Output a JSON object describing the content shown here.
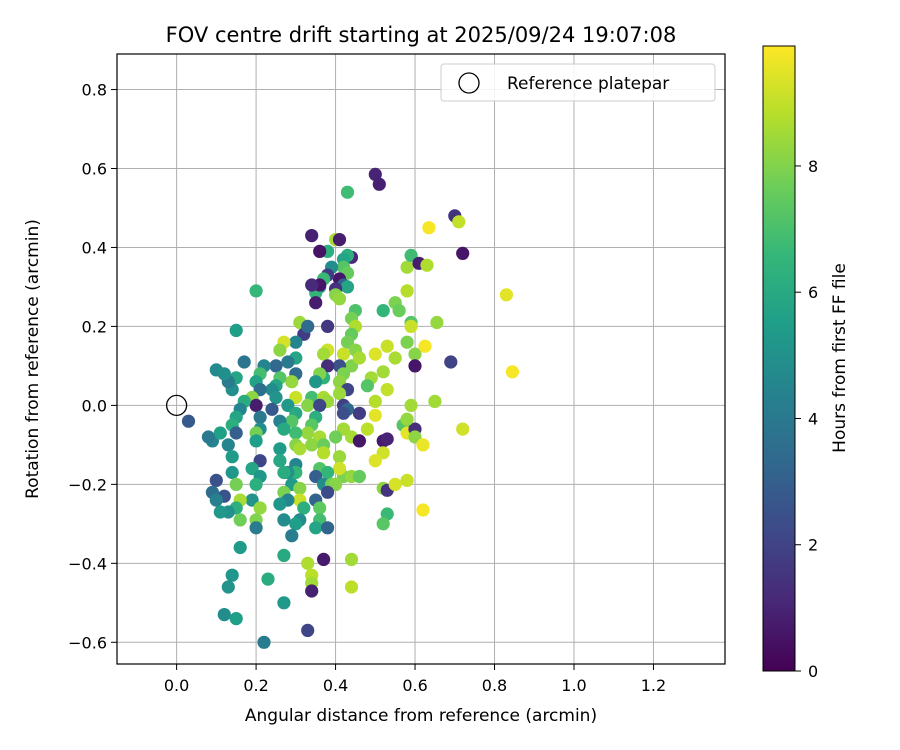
{
  "chart_data": {
    "type": "scatter",
    "title": "FOV centre drift starting at 2025/09/24 19:07:08",
    "xlabel": "Angular distance from reference (arcmin)",
    "ylabel": "Rotation from reference (arcmin)",
    "xlim": [
      -0.15,
      1.38
    ],
    "ylim": [
      -0.655,
      0.89
    ],
    "xticks": [
      0.0,
      0.2,
      0.4,
      0.6,
      0.8,
      1.0,
      1.2
    ],
    "xtick_labels": [
      "0.0",
      "0.2",
      "0.4",
      "0.6",
      "0.8",
      "1.0",
      "1.2"
    ],
    "yticks": [
      -0.6,
      -0.4,
      -0.2,
      0.0,
      0.2,
      0.4,
      0.6,
      0.8
    ],
    "ytick_labels": [
      "−0.6",
      "−0.4",
      "−0.2",
      "0.0",
      "0.2",
      "0.4",
      "0.6",
      "0.8"
    ],
    "grid": true,
    "legend": {
      "position": "top-right",
      "entries": [
        "Reference platepar"
      ]
    },
    "reference": {
      "x": 0.0,
      "y": 0.0,
      "label": "Reference platepar"
    },
    "colorbar": {
      "label": "Hours from first FF file",
      "range": [
        0,
        9.9
      ],
      "ticks": [
        0,
        2,
        4,
        6,
        8
      ],
      "tick_labels": [
        "0",
        "2",
        "4",
        "6",
        "8"
      ],
      "colormap": "viridis",
      "stops": [
        "#440154",
        "#482878",
        "#3e4989",
        "#31688e",
        "#26828e",
        "#1f9e89",
        "#35b779",
        "#6ece58",
        "#b5de2b",
        "#fde725"
      ]
    },
    "points": [
      [
        0.5,
        0.585,
        1.0
      ],
      [
        0.51,
        0.56,
        0.9
      ],
      [
        0.7,
        0.48,
        1.5
      ],
      [
        0.71,
        0.465,
        9.0
      ],
      [
        0.72,
        0.385,
        0.6
      ],
      [
        0.635,
        0.45,
        9.8
      ],
      [
        0.58,
        0.35,
        8.5
      ],
      [
        0.59,
        0.38,
        6.8
      ],
      [
        0.61,
        0.36,
        0.8
      ],
      [
        0.63,
        0.355,
        8.7
      ],
      [
        0.58,
        0.29,
        8.8
      ],
      [
        0.55,
        0.26,
        7.9
      ],
      [
        0.52,
        0.24,
        6.5
      ],
      [
        0.56,
        0.24,
        7.6
      ],
      [
        0.59,
        0.21,
        7.2
      ],
      [
        0.59,
        0.2,
        9.1
      ],
      [
        0.58,
        0.16,
        7.9
      ],
      [
        0.6,
        0.13,
        8.1
      ],
      [
        0.6,
        0.1,
        0.6
      ],
      [
        0.625,
        0.15,
        9.8
      ],
      [
        0.655,
        0.21,
        8.3
      ],
      [
        0.69,
        0.11,
        2.0
      ],
      [
        0.65,
        0.01,
        8.5
      ],
      [
        0.72,
        -0.06,
        9.2
      ],
      [
        0.83,
        0.28,
        9.5
      ],
      [
        0.845,
        0.085,
        9.8
      ],
      [
        0.5,
        0.13,
        9.4
      ],
      [
        0.53,
        0.15,
        9.1
      ],
      [
        0.55,
        0.12,
        8.6
      ],
      [
        0.52,
        0.085,
        8.5
      ],
      [
        0.53,
        0.04,
        9.0
      ],
      [
        0.5,
        0.01,
        8.8
      ],
      [
        0.5,
        -0.025,
        9.5
      ],
      [
        0.49,
        0.07,
        8.5
      ],
      [
        0.48,
        0.05,
        7.2
      ],
      [
        0.46,
        -0.02,
        1.8
      ],
      [
        0.48,
        -0.06,
        8.9
      ],
      [
        0.44,
        -0.08,
        8.6
      ],
      [
        0.46,
        -0.09,
        0.6
      ],
      [
        0.52,
        -0.09,
        0.7
      ],
      [
        0.53,
        -0.085,
        1.0
      ],
      [
        0.52,
        -0.12,
        9.2
      ],
      [
        0.5,
        -0.14,
        9.4
      ],
      [
        0.52,
        -0.21,
        8.2
      ],
      [
        0.53,
        -0.215,
        1.5
      ],
      [
        0.55,
        -0.2,
        9.3
      ],
      [
        0.58,
        -0.19,
        9.1
      ],
      [
        0.57,
        -0.05,
        7.2
      ],
      [
        0.58,
        -0.07,
        9.5
      ],
      [
        0.6,
        -0.06,
        1.3
      ],
      [
        0.59,
        0.0,
        8.5
      ],
      [
        0.58,
        -0.035,
        8.3
      ],
      [
        0.6,
        -0.08,
        8.2
      ],
      [
        0.62,
        -0.1,
        9.6
      ],
      [
        0.62,
        -0.265,
        9.8
      ],
      [
        0.53,
        -0.275,
        6.7
      ],
      [
        0.52,
        -0.3,
        7.3
      ],
      [
        0.44,
        -0.39,
        8.5
      ],
      [
        0.44,
        -0.46,
        8.9
      ],
      [
        0.4,
        0.42,
        8.6
      ],
      [
        0.41,
        0.42,
        0.8
      ],
      [
        0.44,
        0.375,
        1.1
      ],
      [
        0.43,
        0.38,
        6.2
      ],
      [
        0.42,
        0.37,
        5.8
      ],
      [
        0.42,
        0.35,
        7.2
      ],
      [
        0.43,
        0.335,
        7.5
      ],
      [
        0.41,
        0.32,
        0.6
      ],
      [
        0.42,
        0.305,
        3.0
      ],
      [
        0.43,
        0.3,
        5.8
      ],
      [
        0.4,
        0.295,
        1.4
      ],
      [
        0.4,
        0.28,
        8.1
      ],
      [
        0.41,
        0.27,
        8.3
      ],
      [
        0.43,
        0.54,
        6.8
      ],
      [
        0.38,
        0.39,
        6.2
      ],
      [
        0.39,
        0.35,
        4.8
      ],
      [
        0.38,
        0.33,
        1.8
      ],
      [
        0.37,
        0.32,
        6.7
      ],
      [
        0.36,
        0.3,
        5.2
      ],
      [
        0.35,
        0.285,
        6.5
      ],
      [
        0.35,
        0.26,
        0.8
      ],
      [
        0.36,
        0.305,
        0.6
      ],
      [
        0.34,
        0.43,
        0.9
      ],
      [
        0.34,
        0.305,
        1.2
      ],
      [
        0.36,
        0.39,
        0.5
      ],
      [
        0.45,
        0.24,
        7.1
      ],
      [
        0.44,
        0.22,
        7.8
      ],
      [
        0.45,
        0.2,
        8.7
      ],
      [
        0.44,
        0.18,
        7.5
      ],
      [
        0.43,
        0.16,
        7.8
      ],
      [
        0.45,
        0.14,
        8.1
      ],
      [
        0.44,
        0.1,
        8.0
      ],
      [
        0.46,
        0.12,
        8.6
      ],
      [
        0.42,
        0.13,
        9.1
      ],
      [
        0.41,
        0.1,
        2.5
      ],
      [
        0.42,
        0.08,
        7.9
      ],
      [
        0.41,
        0.06,
        8.2
      ],
      [
        0.43,
        0.04,
        2.1
      ],
      [
        0.41,
        0.03,
        8.4
      ],
      [
        0.42,
        0.0,
        1.9
      ],
      [
        0.43,
        -0.01,
        3.3
      ],
      [
        0.42,
        -0.02,
        2.4
      ],
      [
        0.42,
        -0.06,
        8.5
      ],
      [
        0.4,
        -0.08,
        7.7
      ],
      [
        0.41,
        -0.13,
        8.4
      ],
      [
        0.42,
        -0.18,
        7.9
      ],
      [
        0.44,
        -0.18,
        8.3
      ],
      [
        0.46,
        -0.18,
        7.5
      ],
      [
        0.41,
        -0.16,
        9.2
      ],
      [
        0.4,
        -0.2,
        9.0
      ],
      [
        0.38,
        0.2,
        1.6
      ],
      [
        0.38,
        0.14,
        9.2
      ],
      [
        0.37,
        0.13,
        8.5
      ],
      [
        0.38,
        0.1,
        1.3
      ],
      [
        0.37,
        0.07,
        6.4
      ],
      [
        0.36,
        0.08,
        8.0
      ],
      [
        0.35,
        0.06,
        5.2
      ],
      [
        0.34,
        0.02,
        6.9
      ],
      [
        0.33,
        0.0,
        8.1
      ],
      [
        0.37,
        0.02,
        8.6
      ],
      [
        0.38,
        0.01,
        8.4
      ],
      [
        0.36,
        0.0,
        2.1
      ],
      [
        0.35,
        -0.03,
        6.2
      ],
      [
        0.34,
        -0.05,
        7.3
      ],
      [
        0.33,
        -0.07,
        8.3
      ],
      [
        0.36,
        -0.08,
        8.6
      ],
      [
        0.34,
        -0.1,
        8.2
      ],
      [
        0.37,
        -0.1,
        7.6
      ],
      [
        0.37,
        -0.12,
        8.8
      ],
      [
        0.36,
        -0.16,
        7.2
      ],
      [
        0.38,
        -0.17,
        6.5
      ],
      [
        0.35,
        -0.18,
        3.0
      ],
      [
        0.37,
        -0.2,
        4.8
      ],
      [
        0.39,
        -0.2,
        7.8
      ],
      [
        0.4,
        -0.2,
        8.1
      ],
      [
        0.38,
        -0.22,
        2.3
      ],
      [
        0.35,
        -0.24,
        3.1
      ],
      [
        0.36,
        -0.26,
        7.4
      ],
      [
        0.36,
        -0.29,
        6.9
      ],
      [
        0.35,
        -0.31,
        5.8
      ],
      [
        0.38,
        -0.31,
        3.2
      ],
      [
        0.37,
        -0.39,
        0.7
      ],
      [
        0.33,
        -0.4,
        8.7
      ],
      [
        0.34,
        -0.43,
        8.9
      ],
      [
        0.34,
        -0.45,
        8.5
      ],
      [
        0.34,
        -0.47,
        0.9
      ],
      [
        0.33,
        -0.57,
        2.1
      ],
      [
        0.31,
        0.21,
        8.4
      ],
      [
        0.32,
        0.18,
        1.8
      ],
      [
        0.33,
        0.2,
        3.4
      ],
      [
        0.3,
        0.16,
        4.5
      ],
      [
        0.3,
        0.12,
        5.8
      ],
      [
        0.28,
        0.11,
        4.0
      ],
      [
        0.3,
        0.08,
        3.5
      ],
      [
        0.29,
        0.06,
        8.3
      ],
      [
        0.3,
        0.02,
        9.1
      ],
      [
        0.28,
        0.0,
        5.3
      ],
      [
        0.3,
        -0.02,
        6.0
      ],
      [
        0.29,
        -0.04,
        7.2
      ],
      [
        0.3,
        -0.07,
        6.8
      ],
      [
        0.3,
        -0.1,
        8.1
      ],
      [
        0.31,
        -0.11,
        8.6
      ],
      [
        0.3,
        -0.15,
        4.5
      ],
      [
        0.3,
        -0.17,
        6.5
      ],
      [
        0.28,
        -0.17,
        5.0
      ],
      [
        0.29,
        -0.2,
        5.4
      ],
      [
        0.31,
        -0.21,
        8.1
      ],
      [
        0.31,
        -0.24,
        9.1
      ],
      [
        0.32,
        -0.26,
        6.2
      ],
      [
        0.31,
        -0.29,
        4.8
      ],
      [
        0.3,
        -0.3,
        5.5
      ],
      [
        0.29,
        -0.33,
        4.2
      ],
      [
        0.27,
        0.16,
        9.3
      ],
      [
        0.26,
        0.14,
        8.2
      ],
      [
        0.25,
        0.1,
        3.3
      ],
      [
        0.26,
        0.07,
        7.2
      ],
      [
        0.25,
        0.05,
        5.8
      ],
      [
        0.24,
        0.04,
        4.8
      ],
      [
        0.25,
        0.02,
        5.1
      ],
      [
        0.24,
        -0.01,
        2.8
      ],
      [
        0.26,
        -0.04,
        4.4
      ],
      [
        0.27,
        -0.06,
        6.0
      ],
      [
        0.26,
        -0.11,
        5.4
      ],
      [
        0.26,
        -0.14,
        5.9
      ],
      [
        0.27,
        -0.17,
        6.1
      ],
      [
        0.27,
        -0.22,
        7.9
      ],
      [
        0.28,
        -0.24,
        4.5
      ],
      [
        0.26,
        -0.25,
        5.2
      ],
      [
        0.27,
        -0.29,
        4.8
      ],
      [
        0.27,
        -0.38,
        6.0
      ],
      [
        0.27,
        -0.5,
        5.3
      ],
      [
        0.23,
        -0.44,
        6.1
      ],
      [
        0.22,
        -0.6,
        4.1
      ],
      [
        0.2,
        0.29,
        6.6
      ],
      [
        0.22,
        0.1,
        4.5
      ],
      [
        0.21,
        0.08,
        6.9
      ],
      [
        0.2,
        0.06,
        5.7
      ],
      [
        0.21,
        0.04,
        3.6
      ],
      [
        0.19,
        0.02,
        8.2
      ],
      [
        0.2,
        0.0,
        0.8
      ],
      [
        0.21,
        -0.03,
        4.0
      ],
      [
        0.21,
        -0.06,
        4.8
      ],
      [
        0.2,
        -0.07,
        7.8
      ],
      [
        0.2,
        -0.09,
        5.5
      ],
      [
        0.21,
        -0.14,
        2.1
      ],
      [
        0.19,
        -0.16,
        5.8
      ],
      [
        0.21,
        -0.18,
        5.2
      ],
      [
        0.2,
        -0.2,
        6.2
      ],
      [
        0.19,
        -0.24,
        5.1
      ],
      [
        0.21,
        -0.26,
        8.3
      ],
      [
        0.2,
        -0.29,
        8.0
      ],
      [
        0.2,
        -0.31,
        4.1
      ],
      [
        0.16,
        -0.36,
        5.4
      ],
      [
        0.15,
        0.19,
        5.5
      ],
      [
        0.17,
        0.11,
        3.9
      ],
      [
        0.15,
        0.07,
        5.8
      ],
      [
        0.14,
        0.04,
        4.9
      ],
      [
        0.13,
        0.06,
        4.1
      ],
      [
        0.17,
        0.01,
        6.1
      ],
      [
        0.16,
        -0.01,
        4.5
      ],
      [
        0.15,
        -0.03,
        5.8
      ],
      [
        0.14,
        -0.05,
        6.2
      ],
      [
        0.15,
        -0.07,
        3.0
      ],
      [
        0.13,
        -0.1,
        4.5
      ],
      [
        0.14,
        -0.13,
        5.4
      ],
      [
        0.14,
        -0.17,
        5.2
      ],
      [
        0.15,
        -0.2,
        7.8
      ],
      [
        0.16,
        -0.24,
        8.6
      ],
      [
        0.15,
        -0.26,
        6.2
      ],
      [
        0.16,
        -0.29,
        7.7
      ],
      [
        0.13,
        -0.27,
        5.0
      ],
      [
        0.12,
        -0.23,
        2.6
      ],
      [
        0.11,
        -0.27,
        5.3
      ],
      [
        0.14,
        -0.43,
        5.2
      ],
      [
        0.13,
        -0.46,
        5.1
      ],
      [
        0.12,
        -0.53,
        4.8
      ],
      [
        0.15,
        -0.54,
        5.5
      ],
      [
        0.1,
        0.09,
        4.7
      ],
      [
        0.12,
        0.08,
        4.9
      ],
      [
        0.09,
        -0.09,
        4.5
      ],
      [
        0.11,
        -0.07,
        5.6
      ],
      [
        0.08,
        -0.08,
        4.0
      ],
      [
        0.1,
        -0.19,
        2.5
      ],
      [
        0.09,
        -0.22,
        3.5
      ],
      [
        0.1,
        -0.24,
        4.3
      ],
      [
        0.03,
        -0.04,
        2.8
      ]
    ]
  }
}
